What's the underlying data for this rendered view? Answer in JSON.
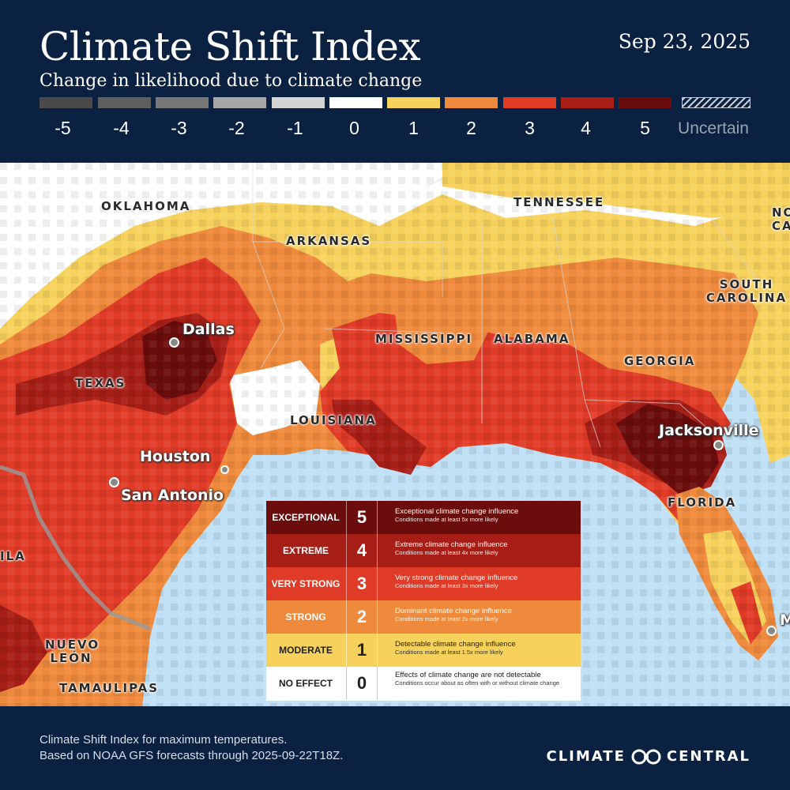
{
  "header": {
    "title": "Climate Shift Index",
    "subtitle": "Change in likelihood due to climate change",
    "date": "Sep 23, 2025"
  },
  "scale": [
    {
      "label": "-5",
      "color": "#4a4a4a"
    },
    {
      "label": "-4",
      "color": "#5e5e5e"
    },
    {
      "label": "-3",
      "color": "#777777"
    },
    {
      "label": "-2",
      "color": "#a7a7a7"
    },
    {
      "label": "-1",
      "color": "#d4d4d4"
    },
    {
      "label": "0",
      "color": "#ffffff"
    },
    {
      "label": "1",
      "color": "#f6d25d"
    },
    {
      "label": "2",
      "color": "#ef8a3c"
    },
    {
      "label": "3",
      "color": "#df3b27"
    },
    {
      "label": "4",
      "color": "#a61e16"
    },
    {
      "label": "5",
      "color": "#6b0d0d"
    }
  ],
  "scale_uncertain_label": "Uncertain",
  "map": {
    "states": [
      "OKLAHOMA",
      "ARKANSAS",
      "TENNESSEE",
      "NORTH CAROLINA",
      "SOUTH CAROLINA",
      "MISSISSIPPI",
      "ALABAMA",
      "GEORGIA",
      "TEXAS",
      "LOUISIANA",
      "FLORIDA",
      "COAHUILA",
      "NUEVO LEÓN",
      "TAMAULIPAS"
    ],
    "state_label_fragments": {
      "north_carolina": [
        "NO",
        "CAR"
      ],
      "south_carolina": [
        "SOUTH",
        "CAROLINA"
      ],
      "coahuila": "ILA",
      "nuevo_leon": [
        "NUEVO",
        "LEÓN"
      ]
    },
    "cities": [
      "Dallas",
      "Houston",
      "San Antonio",
      "Jacksonville",
      "Miami"
    ],
    "city_label_fragments": {
      "miami": "M"
    }
  },
  "legend": [
    {
      "name": "EXCEPTIONAL",
      "value": "5",
      "title": "Exceptional climate change influence",
      "detail": "Conditions made at least 5x more likely",
      "bg": "#6b0d0d",
      "fg": "#ffffff"
    },
    {
      "name": "EXTREME",
      "value": "4",
      "title": "Extreme climate change influence",
      "detail": "Conditions made at least 4x more likely",
      "bg": "#a61e16",
      "fg": "#ffffff"
    },
    {
      "name": "VERY STRONG",
      "value": "3",
      "title": "Very strong climate change influence",
      "detail": "Conditions made at least 3x more likely",
      "bg": "#df3b27",
      "fg": "#ffffff"
    },
    {
      "name": "STRONG",
      "value": "2",
      "title": "Dominant climate change influence",
      "detail": "Conditions made at least  2x more likely",
      "bg": "#ef8a3c",
      "fg": "#ffffff"
    },
    {
      "name": "MODERATE",
      "value": "1",
      "title": "Detectable climate change influence",
      "detail": "Conditions made at least 1.5x more likely",
      "bg": "#f6d25d",
      "fg": "#222222"
    },
    {
      "name": "NO EFFECT",
      "value": "0",
      "title": "Effects of climate change are not detectable",
      "detail": "Conditions occur about as often with or without climate change",
      "bg": "#ffffff",
      "fg": "#222222"
    }
  ],
  "footer": {
    "note_line1": "Climate Shift Index for maximum temperatures.",
    "note_line2": "Based on NOAA GFS forecasts through 2025-09-22T18Z.",
    "brand_left": "CLIMATE",
    "brand_right": "CENTRAL"
  }
}
